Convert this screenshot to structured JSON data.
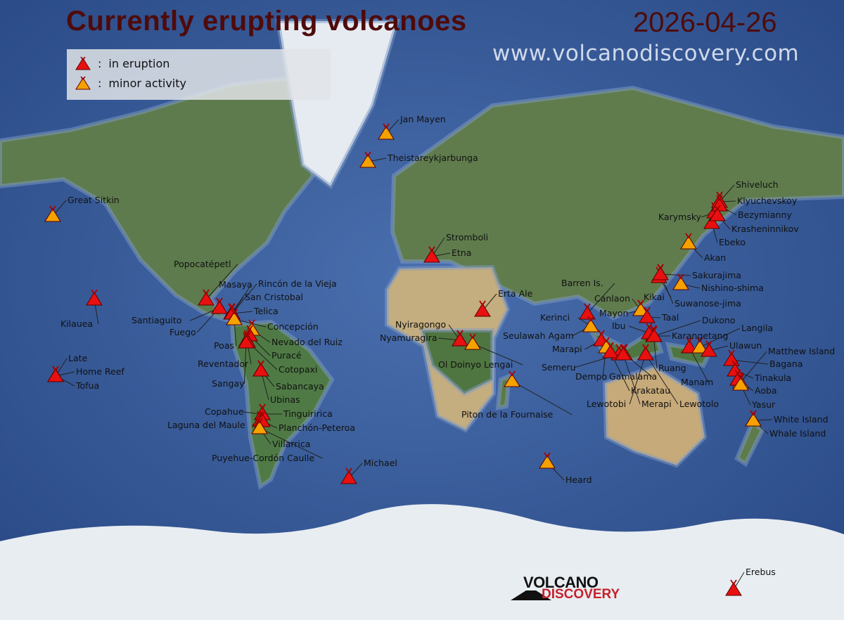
{
  "header": {
    "title": "Currently erupting volcanoes",
    "date": "2026-04-26",
    "url": "www.volcanodiscovery.com"
  },
  "legend": {
    "eruption": "in eruption",
    "minor": "minor activity",
    "separator": ":"
  },
  "logo": {
    "line1": "VOLCANO",
    "line2": "DISCOVERY"
  },
  "colors": {
    "eruption": "#e81010",
    "minor": "#f5a100",
    "title": "#4e0b0b"
  },
  "volcanoes": [
    {
      "name": "Great Sitkin",
      "status": "minor"
    },
    {
      "name": "Kilauea",
      "status": "eruption"
    },
    {
      "name": "Late",
      "status": "eruption"
    },
    {
      "name": "Home Reef",
      "status": "eruption"
    },
    {
      "name": "Tofua",
      "status": "eruption"
    },
    {
      "name": "Popocatépetl",
      "status": "eruption"
    },
    {
      "name": "Santiaguito",
      "status": "eruption"
    },
    {
      "name": "Fuego",
      "status": "eruption"
    },
    {
      "name": "Masaya",
      "status": "eruption"
    },
    {
      "name": "Rincón de la Vieja",
      "status": "eruption"
    },
    {
      "name": "San Cristobal",
      "status": "eruption"
    },
    {
      "name": "Telica",
      "status": "eruption"
    },
    {
      "name": "Concepción",
      "status": "minor"
    },
    {
      "name": "Poas",
      "status": "minor"
    },
    {
      "name": "Nevado del Ruiz",
      "status": "minor"
    },
    {
      "name": "Puracé",
      "status": "eruption"
    },
    {
      "name": "Reventador",
      "status": "eruption"
    },
    {
      "name": "Cotopaxi",
      "status": "eruption"
    },
    {
      "name": "Sangay",
      "status": "eruption"
    },
    {
      "name": "Sabancaya",
      "status": "eruption"
    },
    {
      "name": "Ubinas",
      "status": "eruption"
    },
    {
      "name": "Copahue",
      "status": "eruption"
    },
    {
      "name": "Tinguiririca",
      "status": "eruption"
    },
    {
      "name": "Laguna del Maule",
      "status": "eruption"
    },
    {
      "name": "Planchón-Peteroa",
      "status": "eruption"
    },
    {
      "name": "Villarrica",
      "status": "minor"
    },
    {
      "name": "Puyehue-Cordón Caulle",
      "status": "minor"
    },
    {
      "name": "Michael",
      "status": "eruption"
    },
    {
      "name": "Jan Mayen",
      "status": "minor"
    },
    {
      "name": "Theistareykjarbunga",
      "status": "minor"
    },
    {
      "name": "Stromboli",
      "status": "eruption"
    },
    {
      "name": "Etna",
      "status": "eruption"
    },
    {
      "name": "Erta Ale",
      "status": "eruption"
    },
    {
      "name": "Nyiragongo",
      "status": "eruption"
    },
    {
      "name": "Nyamuragira",
      "status": "eruption"
    },
    {
      "name": "Ol Doinyo Lengai",
      "status": "minor"
    },
    {
      "name": "Piton de la Fournaise",
      "status": "minor"
    },
    {
      "name": "Heard",
      "status": "minor"
    },
    {
      "name": "Erebus",
      "status": "eruption"
    },
    {
      "name": "Barren Is.",
      "status": "eruption"
    },
    {
      "name": "Kerinci",
      "status": "minor"
    },
    {
      "name": "Seulawah Agam",
      "status": "minor"
    },
    {
      "name": "Marapi",
      "status": "eruption"
    },
    {
      "name": "Semeru",
      "status": "eruption"
    },
    {
      "name": "Dempo",
      "status": "minor"
    },
    {
      "name": "Gamalama",
      "status": "eruption"
    },
    {
      "name": "Krakatau",
      "status": "eruption"
    },
    {
      "name": "Merapi",
      "status": "eruption"
    },
    {
      "name": "Lewotobi",
      "status": "eruption"
    },
    {
      "name": "Lewotolo",
      "status": "eruption"
    },
    {
      "name": "Ruang",
      "status": "eruption"
    },
    {
      "name": "Manam",
      "status": "eruption"
    },
    {
      "name": "Ibu",
      "status": "eruption"
    },
    {
      "name": "Karangetang",
      "status": "eruption"
    },
    {
      "name": "Dukono",
      "status": "eruption"
    },
    {
      "name": "Canlaon",
      "status": "minor"
    },
    {
      "name": "Mayon",
      "status": "minor"
    },
    {
      "name": "Taal",
      "status": "eruption"
    },
    {
      "name": "Kikai",
      "status": "eruption"
    },
    {
      "name": "Sakurajima",
      "status": "eruption"
    },
    {
      "name": "Suwanose-jima",
      "status": "eruption"
    },
    {
      "name": "Nishino-shima",
      "status": "minor"
    },
    {
      "name": "Langila",
      "status": "minor"
    },
    {
      "name": "Ulawun",
      "status": "eruption"
    },
    {
      "name": "Matthew Island",
      "status": "minor"
    },
    {
      "name": "Bagana",
      "status": "eruption"
    },
    {
      "name": "Tinakula",
      "status": "eruption"
    },
    {
      "name": "Aoba",
      "status": "eruption"
    },
    {
      "name": "Yasur",
      "status": "minor"
    },
    {
      "name": "White Island",
      "status": "minor"
    },
    {
      "name": "Whale Island",
      "status": "minor"
    },
    {
      "name": "Akan",
      "status": "minor"
    },
    {
      "name": "Ebeko",
      "status": "eruption"
    },
    {
      "name": "Karymsky",
      "status": "eruption"
    },
    {
      "name": "Shiveluch",
      "status": "eruption"
    },
    {
      "name": "Klyuchevskoy",
      "status": "eruption"
    },
    {
      "name": "Bezymianny",
      "status": "eruption"
    },
    {
      "name": "Krasheninnikov",
      "status": "eruption"
    }
  ]
}
